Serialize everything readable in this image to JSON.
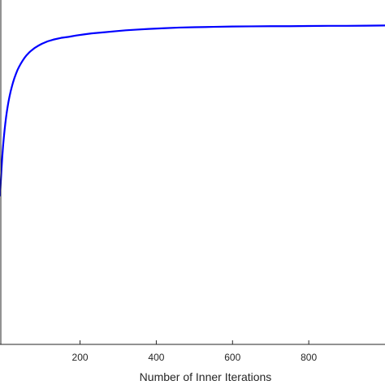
{
  "chart_data": {
    "type": "line",
    "title": "",
    "xlabel": "Number of Inner Iterations",
    "ylabel": "",
    "xlim": [
      -10,
      1000
    ],
    "ylim": [
      0,
      1
    ],
    "x_ticks": [
      200,
      400,
      600,
      800
    ],
    "x_tick_labels": [
      "200",
      "400",
      "600",
      "800"
    ],
    "grid": false,
    "legend": "none",
    "series": [
      {
        "color": "#0000ff",
        "x": [
          -10,
          -8,
          -6,
          -4,
          -2,
          0,
          2,
          4,
          6,
          8,
          10,
          12,
          15,
          18,
          21,
          24,
          28,
          32,
          36,
          40,
          45,
          50,
          55,
          60,
          66,
          72,
          80,
          90,
          100,
          115,
          130,
          150,
          170,
          190,
          210,
          230,
          260,
          290,
          320,
          350,
          380,
          420,
          460,
          500,
          550,
          600,
          650,
          700,
          750,
          800,
          850,
          900,
          950,
          1000
        ],
        "y": [
          0.43,
          0.47,
          0.51,
          0.545,
          0.575,
          0.6,
          0.622,
          0.642,
          0.66,
          0.676,
          0.69,
          0.703,
          0.72,
          0.735,
          0.748,
          0.76,
          0.774,
          0.786,
          0.797,
          0.806,
          0.816,
          0.825,
          0.833,
          0.84,
          0.847,
          0.853,
          0.86,
          0.867,
          0.873,
          0.88,
          0.885,
          0.89,
          0.893,
          0.897,
          0.9,
          0.903,
          0.906,
          0.909,
          0.912,
          0.914,
          0.916,
          0.918,
          0.92,
          0.921,
          0.922,
          0.923,
          0.9235,
          0.924,
          0.924,
          0.9245,
          0.925,
          0.925,
          0.9255,
          0.926
        ]
      }
    ]
  }
}
